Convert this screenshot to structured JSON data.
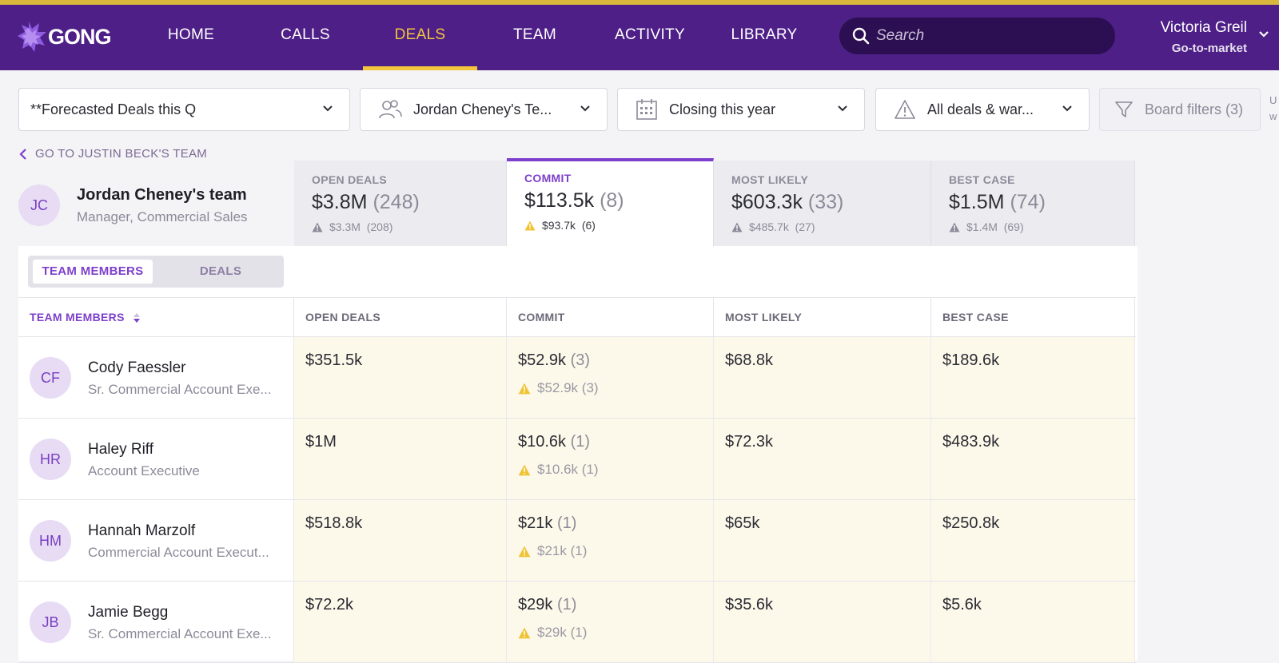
{
  "app": {
    "logo_text": "GONG",
    "brand_color": "#4d1f87",
    "accent_color": "#f2c53d"
  },
  "nav": {
    "items": [
      {
        "label": "HOME"
      },
      {
        "label": "CALLS"
      },
      {
        "label": "DEALS",
        "active": true
      },
      {
        "label": "TEAM"
      },
      {
        "label": "ACTIVITY"
      },
      {
        "label": "LIBRARY"
      }
    ],
    "search_placeholder": "Search",
    "user_name": "Victoria Greil",
    "user_role": "Go-to-market"
  },
  "filters": {
    "board": "**Forecasted Deals this Q",
    "team": "Jordan Cheney's Te...",
    "period": "Closing this year",
    "deals": "All deals & war...",
    "board_filters": "Board filters (3)",
    "cut_off_text": [
      "U",
      "w"
    ]
  },
  "back_link": "GO TO JUSTIN BECK'S TEAM",
  "team": {
    "initials": "JC",
    "name": "Jordan Cheney's team",
    "role": "Manager, Commercial Sales"
  },
  "kpis": [
    {
      "label": "OPEN DEALS",
      "value": "$3.8M",
      "count": "(248)",
      "risk_value": "$3.3M",
      "risk_count": "(208)"
    },
    {
      "label": "COMMIT",
      "value": "$113.5k",
      "count": "(8)",
      "risk_value": "$93.7k",
      "risk_count": "(6)",
      "active": true
    },
    {
      "label": "MOST LIKELY",
      "value": "$603.3k",
      "count": "(33)",
      "risk_value": "$485.7k",
      "risk_count": "(27)"
    },
    {
      "label": "BEST CASE",
      "value": "$1.5M",
      "count": "(74)",
      "risk_value": "$1.4M",
      "risk_count": "(69)"
    }
  ],
  "view_toggle": {
    "selected": "TEAM MEMBERS",
    "other": "DEALS"
  },
  "table": {
    "headers": [
      "TEAM MEMBERS",
      "OPEN DEALS",
      "COMMIT",
      "MOST LIKELY",
      "BEST CASE"
    ],
    "rows": [
      {
        "initials": "CF",
        "name": "Cody Faessler",
        "role": "Sr. Commercial Account Exe...",
        "open": "$351.5k",
        "commit": "$52.9k",
        "commit_count": "(3)",
        "commit_risk": "$52.9k",
        "commit_risk_count": "(3)",
        "likely": "$68.8k",
        "best": "$189.6k"
      },
      {
        "initials": "HR",
        "name": "Haley Riff",
        "role": "Account Executive",
        "open": "$1M",
        "commit": "$10.6k",
        "commit_count": "(1)",
        "commit_risk": "$10.6k",
        "commit_risk_count": "(1)",
        "likely": "$72.3k",
        "best": "$483.9k"
      },
      {
        "initials": "HM",
        "name": "Hannah Marzolf",
        "role": "Commercial Account Execut...",
        "open": "$518.8k",
        "commit": "$21k",
        "commit_count": "(1)",
        "commit_risk": "$21k",
        "commit_risk_count": "(1)",
        "likely": "$65k",
        "best": "$250.8k"
      },
      {
        "initials": "JB",
        "name": "Jamie Begg",
        "role": "Sr. Commercial Account Exe...",
        "open": "$72.2k",
        "commit": "$29k",
        "commit_count": "(1)",
        "commit_risk": "$29k",
        "commit_risk_count": "(1)",
        "likely": "$35.6k",
        "best": "$5.6k"
      }
    ]
  }
}
